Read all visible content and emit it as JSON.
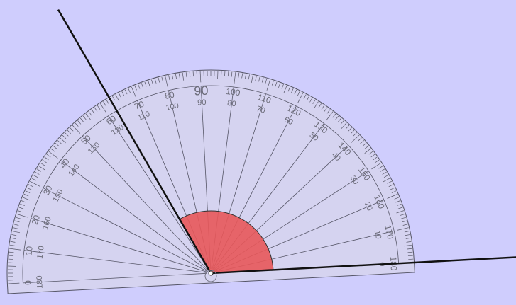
{
  "scene": {
    "background_color": "#cfcdfd",
    "protractor": {
      "tilt_degrees": 3,
      "body_color": "#d6d4ec",
      "line_color": "#555566",
      "label_color": "#6b6b78",
      "outer_labels": [
        "180",
        "170",
        "160",
        "150",
        "140",
        "130",
        "120",
        "110",
        "100",
        "90",
        "80",
        "70",
        "60",
        "50",
        "40",
        "30",
        "20",
        "10",
        "0"
      ],
      "inner_labels": [
        "0",
        "10",
        "20",
        "30",
        "40",
        "50",
        "60",
        "70",
        "80",
        "90",
        "100",
        "110",
        "120",
        "130",
        "140",
        "150",
        "160",
        "170",
        "180"
      ],
      "center_label": "90"
    },
    "angle": {
      "arm_1_direction_degrees": 3,
      "arm_2_direction_degrees": 120,
      "measure_degrees": 117,
      "fill_color": "#e8585a",
      "arm_color": "#111111"
    }
  }
}
